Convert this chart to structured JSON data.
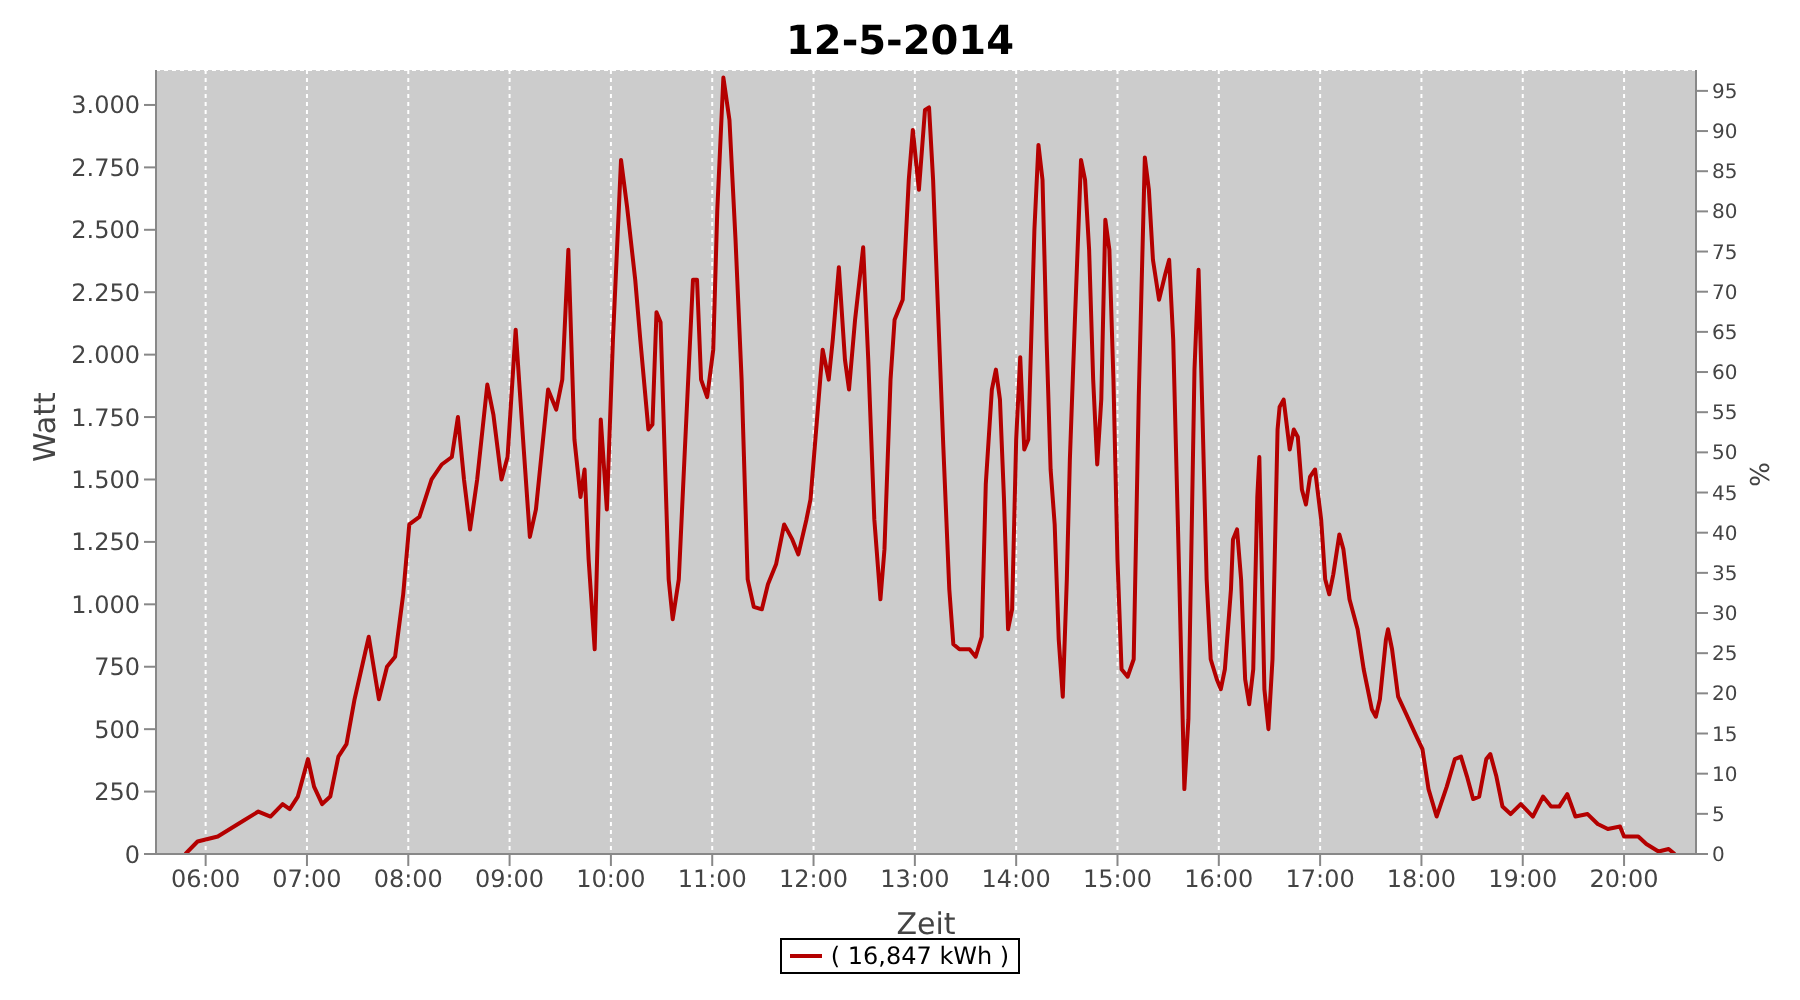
{
  "chart_data": {
    "type": "line",
    "title": "12-5-2014",
    "xlabel": "Zeit",
    "ylabel": "Watt",
    "y2label": "%",
    "x": [
      5.8,
      5.92,
      6.12,
      6.36,
      6.52,
      6.64,
      6.76,
      6.83,
      6.91,
      7.01,
      7.07,
      7.15,
      7.23,
      7.31,
      7.39,
      7.47,
      7.61,
      7.71,
      7.79,
      7.87,
      7.95,
      8.01,
      8.11,
      8.23,
      8.33,
      8.43,
      8.49,
      8.55,
      8.61,
      8.68,
      8.78,
      8.84,
      8.92,
      8.98,
      9.06,
      9.14,
      9.2,
      9.26,
      9.38,
      9.46,
      9.52,
      9.58,
      9.64,
      9.7,
      9.74,
      9.78,
      9.84,
      9.9,
      9.96,
      10.02,
      10.1,
      10.16,
      10.24,
      10.29,
      10.37,
      10.41,
      10.45,
      10.49,
      10.57,
      10.61,
      10.67,
      10.73,
      10.81,
      10.85,
      10.89,
      10.95,
      11.01,
      11.05,
      11.11,
      11.17,
      11.23,
      11.29,
      11.35,
      11.41,
      11.49,
      11.55,
      11.63,
      11.71,
      11.79,
      11.85,
      11.93,
      11.97,
      12.05,
      12.09,
      12.15,
      12.19,
      12.25,
      12.31,
      12.35,
      12.41,
      12.49,
      12.54,
      12.6,
      12.66,
      12.7,
      12.76,
      12.8,
      12.88,
      12.94,
      12.98,
      13.04,
      13.1,
      13.14,
      13.18,
      13.22,
      13.28,
      13.34,
      13.38,
      13.44,
      13.54,
      13.6,
      13.66,
      13.7,
      13.76,
      13.8,
      13.84,
      13.88,
      13.92,
      13.96,
      14.0,
      14.04,
      14.08,
      14.12,
      14.18,
      14.22,
      14.26,
      14.3,
      14.34,
      14.38,
      14.42,
      14.46,
      14.5,
      14.53,
      14.58,
      14.64,
      14.68,
      14.72,
      14.76,
      14.8,
      14.84,
      14.88,
      14.92,
      14.96,
      15.0,
      15.04,
      15.1,
      15.16,
      15.21,
      15.27,
      15.31,
      15.35,
      15.41,
      15.47,
      15.51,
      15.55,
      15.61,
      15.66,
      15.7,
      15.76,
      15.8,
      15.84,
      15.88,
      15.92,
      15.98,
      16.02,
      16.06,
      16.12,
      16.14,
      16.18,
      16.22,
      16.26,
      16.3,
      16.34,
      16.38,
      16.4,
      16.45,
      16.49,
      16.53,
      16.58,
      16.6,
      16.64,
      16.7,
      16.74,
      16.78,
      16.82,
      16.86,
      16.9,
      16.95,
      17.01,
      17.05,
      17.09,
      17.13,
      17.19,
      17.23,
      17.29,
      17.37,
      17.43,
      17.51,
      17.55,
      17.59,
      17.65,
      17.67,
      17.71,
      17.77,
      17.85,
      17.94,
      18.01,
      18.07,
      18.15,
      18.25,
      18.33,
      18.39,
      18.45,
      18.51,
      18.57,
      18.64,
      18.68,
      18.74,
      18.8,
      18.88,
      18.98,
      19.1,
      19.2,
      19.28,
      19.36,
      19.44,
      19.52,
      19.64,
      19.74,
      19.84,
      19.96,
      20.0,
      20.14,
      20.22,
      20.34,
      20.44,
      20.5
    ],
    "series": [
      {
        "name": "( 16,847 kWh )",
        "color": "#b40000",
        "values": [
          0,
          50,
          70,
          130,
          170,
          150,
          200,
          180,
          230,
          380,
          270,
          200,
          230,
          390,
          440,
          620,
          870,
          620,
          750,
          790,
          1040,
          1320,
          1350,
          1500,
          1560,
          1590,
          1750,
          1500,
          1300,
          1500,
          1880,
          1760,
          1500,
          1590,
          2100,
          1620,
          1270,
          1380,
          1860,
          1780,
          1900,
          2420,
          1660,
          1430,
          1540,
          1180,
          820,
          1740,
          1380,
          2060,
          2780,
          2590,
          2300,
          2060,
          1700,
          1720,
          2170,
          2130,
          1100,
          940,
          1100,
          1620,
          2300,
          2300,
          1900,
          1830,
          2020,
          2580,
          3110,
          2940,
          2460,
          1900,
          1100,
          990,
          980,
          1080,
          1160,
          1320,
          1260,
          1200,
          1340,
          1420,
          1820,
          2020,
          1900,
          2060,
          2350,
          1980,
          1860,
          2140,
          2430,
          1980,
          1340,
          1020,
          1220,
          1900,
          2140,
          2220,
          2700,
          2900,
          2660,
          2980,
          2990,
          2700,
          2270,
          1640,
          1060,
          840,
          820,
          820,
          790,
          870,
          1480,
          1860,
          1940,
          1820,
          1420,
          900,
          980,
          1660,
          1990,
          1620,
          1660,
          2500,
          2840,
          2700,
          2060,
          1540,
          1320,
          860,
          630,
          1100,
          1580,
          2140,
          2780,
          2700,
          2420,
          1900,
          1560,
          1820,
          2540,
          2420,
          1900,
          1180,
          740,
          710,
          780,
          1830,
          2790,
          2660,
          2380,
          2220,
          2320,
          2380,
          2060,
          1100,
          260,
          540,
          1940,
          2340,
          1740,
          1100,
          780,
          700,
          660,
          740,
          1060,
          1260,
          1300,
          1100,
          700,
          600,
          740,
          1430,
          1590,
          660,
          500,
          780,
          1700,
          1790,
          1820,
          1620,
          1700,
          1670,
          1460,
          1400,
          1510,
          1540,
          1340,
          1100,
          1040,
          1120,
          1280,
          1220,
          1020,
          900,
          740,
          580,
          550,
          620,
          860,
          900,
          820,
          630,
          560,
          480,
          420,
          260,
          150,
          270,
          380,
          390,
          310,
          220,
          230,
          380,
          400,
          310,
          190,
          160,
          200,
          150,
          230,
          190,
          190,
          240,
          150,
          160,
          120,
          100,
          110,
          70,
          70,
          40,
          10,
          20,
          0
        ]
      }
    ],
    "xlim": [
      5.51,
      20.71
    ],
    "xticks": [
      {
        "value": 6,
        "label": "06:00"
      },
      {
        "value": 7,
        "label": "07:00"
      },
      {
        "value": 8,
        "label": "08:00"
      },
      {
        "value": 9,
        "label": "09:00"
      },
      {
        "value": 10,
        "label": "10:00"
      },
      {
        "value": 11,
        "label": "11:00"
      },
      {
        "value": 12,
        "label": "12:00"
      },
      {
        "value": 13,
        "label": "13:00"
      },
      {
        "value": 14,
        "label": "14:00"
      },
      {
        "value": 15,
        "label": "15:00"
      },
      {
        "value": 16,
        "label": "16:00"
      },
      {
        "value": 17,
        "label": "17:00"
      },
      {
        "value": 18,
        "label": "18:00"
      },
      {
        "value": 19,
        "label": "19:00"
      },
      {
        "value": 20,
        "label": "20:00"
      }
    ],
    "ylim": [
      0,
      3140
    ],
    "yticks": [
      0,
      250,
      500,
      750,
      {
        "value": 1000,
        "label": "1.000"
      },
      {
        "value": 1250,
        "label": "1.250"
      },
      {
        "value": 1500,
        "label": "1.500"
      },
      {
        "value": 1750,
        "label": "1.750"
      },
      {
        "value": 2000,
        "label": "2.000"
      },
      {
        "value": 2250,
        "label": "2.250"
      },
      {
        "value": 2500,
        "label": "2.500"
      },
      {
        "value": 2750,
        "label": "2.750"
      },
      {
        "value": 3000,
        "label": "3.000"
      }
    ],
    "y2lim": [
      0,
      97.6
    ],
    "y2ticks": [
      0,
      5,
      10,
      15,
      20,
      25,
      30,
      35,
      40,
      45,
      50,
      55,
      60,
      65,
      70,
      75,
      80,
      85,
      90,
      95
    ],
    "grid": true,
    "legend": "bottom",
    "marker": "none",
    "line_style": "solid"
  }
}
